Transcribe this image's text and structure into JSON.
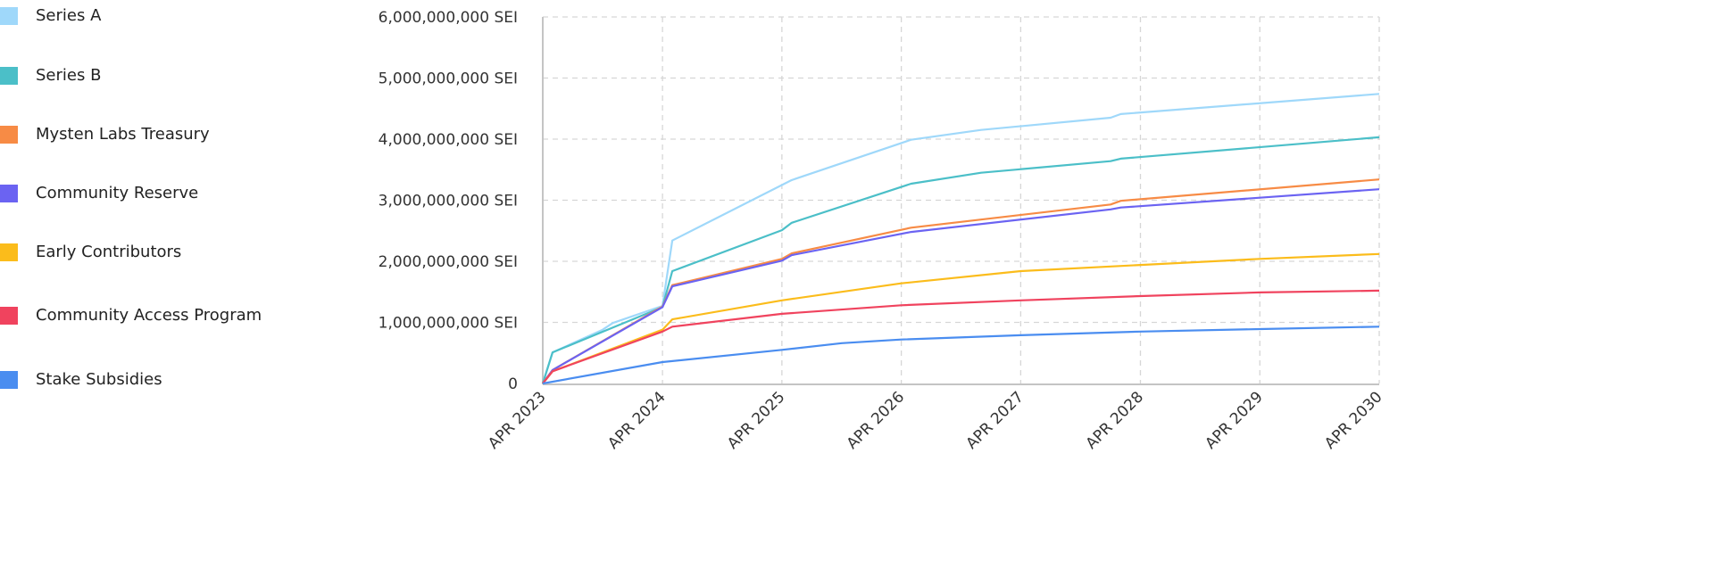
{
  "chart_data": {
    "type": "line",
    "title": "",
    "xlabel": "",
    "ylabel": "",
    "ylim": [
      0,
      6000000000
    ],
    "xlim": [
      "2023-04-01",
      "2030-04-01"
    ],
    "grid": true,
    "legend_placement": "left",
    "y_ticks": [
      "0",
      "1,000,000,000 SEI",
      "2,000,000,000 SEI",
      "3,000,000,000 SEI",
      "4,000,000,000 SEI",
      "5,000,000,000 SEI",
      "6,000,000,000 SEI"
    ],
    "y_tick_values": [
      0,
      1000000000,
      2000000000,
      3000000000,
      4000000000,
      5000000000,
      6000000000
    ],
    "x_ticks": [
      "APR 2023",
      "APR 2024",
      "APR 2025",
      "APR 2026",
      "APR 2027",
      "APR 2028",
      "APR 2029",
      "APR 2030"
    ],
    "x_tick_dates": [
      "2023-04-01",
      "2024-04-01",
      "2025-04-01",
      "2026-04-01",
      "2027-04-01",
      "2028-04-01",
      "2029-04-01",
      "2030-04-01"
    ],
    "series": [
      {
        "name": "Series A",
        "color": "#9fd8fa",
        "x": [
          "2023-04-01",
          "2023-05-01",
          "2023-10-01",
          "2023-11-01",
          "2024-04-01",
          "2024-05-01",
          "2025-05-01",
          "2026-05-01",
          "2026-12-01",
          "2028-01-01",
          "2028-02-01",
          "2030-04-01"
        ],
        "y": [
          0,
          510000000,
          880000000,
          990000000,
          1270000000,
          2340000000,
          3330000000,
          3990000000,
          4150000000,
          4350000000,
          4410000000,
          4740000000
        ]
      },
      {
        "name": "Series B",
        "color": "#4bbfc8",
        "x": [
          "2023-04-01",
          "2023-05-01",
          "2024-04-01",
          "2024-05-01",
          "2025-04-01",
          "2025-05-01",
          "2026-05-01",
          "2026-12-01",
          "2028-01-01",
          "2028-02-01",
          "2030-04-01"
        ],
        "y": [
          0,
          510000000,
          1250000000,
          1840000000,
          2510000000,
          2630000000,
          3270000000,
          3450000000,
          3640000000,
          3680000000,
          4030000000
        ]
      },
      {
        "name": "Mysten Labs Treasury",
        "color": "#f78b45",
        "x": [
          "2023-04-01",
          "2023-05-01",
          "2024-04-01",
          "2024-05-01",
          "2025-04-01",
          "2025-05-01",
          "2026-05-01",
          "2028-01-01",
          "2028-02-01",
          "2030-04-01"
        ],
        "y": [
          0,
          220000000,
          1260000000,
          1610000000,
          2040000000,
          2130000000,
          2550000000,
          2930000000,
          2990000000,
          3340000000
        ]
      },
      {
        "name": "Community Reserve",
        "color": "#6b63f2",
        "x": [
          "2023-04-01",
          "2023-05-01",
          "2024-04-01",
          "2024-05-01",
          "2025-04-01",
          "2025-05-01",
          "2026-05-01",
          "2028-01-01",
          "2028-02-01",
          "2030-04-01"
        ],
        "y": [
          0,
          220000000,
          1250000000,
          1590000000,
          2010000000,
          2100000000,
          2480000000,
          2850000000,
          2880000000,
          3180000000
        ]
      },
      {
        "name": "Early Contributors",
        "color": "#fbbc1b",
        "x": [
          "2023-04-01",
          "2023-05-01",
          "2024-04-01",
          "2024-05-01",
          "2025-04-01",
          "2026-04-01",
          "2027-04-01",
          "2028-04-01",
          "2029-04-01",
          "2030-04-01"
        ],
        "y": [
          0,
          200000000,
          880000000,
          1050000000,
          1360000000,
          1640000000,
          1840000000,
          1940000000,
          2040000000,
          2120000000
        ]
      },
      {
        "name": "Community Access Program",
        "color": "#f0435e",
        "x": [
          "2023-04-01",
          "2023-05-01",
          "2024-04-01",
          "2024-05-01",
          "2025-04-01",
          "2026-04-01",
          "2027-04-01",
          "2028-04-01",
          "2029-04-01",
          "2030-04-01"
        ],
        "y": [
          0,
          200000000,
          850000000,
          930000000,
          1140000000,
          1280000000,
          1360000000,
          1430000000,
          1490000000,
          1520000000
        ]
      },
      {
        "name": "Stake Subsidies",
        "color": "#4a8df0",
        "x": [
          "2023-04-01",
          "2024-04-01",
          "2025-04-01",
          "2025-10-01",
          "2026-04-01",
          "2027-04-01",
          "2028-04-01",
          "2029-04-01",
          "2030-04-01"
        ],
        "y": [
          0,
          350000000,
          550000000,
          660000000,
          720000000,
          790000000,
          850000000,
          890000000,
          930000000
        ]
      }
    ]
  }
}
